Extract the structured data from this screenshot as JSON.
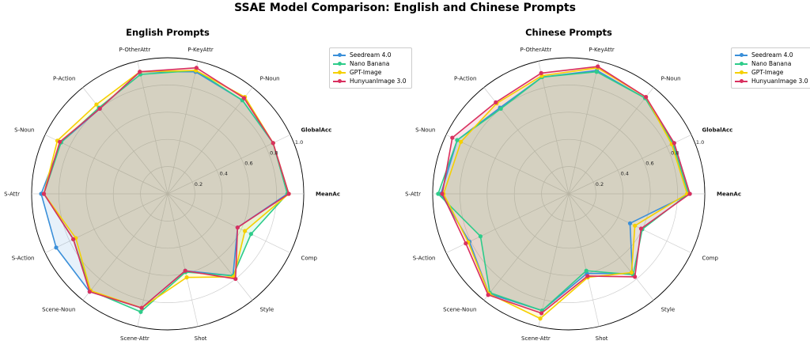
{
  "figure": {
    "title": "SSAE Model Comparison: English and Chinese Prompts"
  },
  "chart_data": [
    {
      "type": "radar",
      "title": "English Prompts",
      "axes": [
        "MeanAcc",
        "Comp",
        "Style",
        "Shot",
        "Scene-Attr",
        "Scene-Noun",
        "S-Action",
        "S-Attr",
        "S-Noun",
        "P-Action",
        "P-OtherAttr",
        "P-KeyAttr",
        "P-Noun",
        "GlobalAcc"
      ],
      "bold_axes": [
        "MeanAcc",
        "GlobalAcc"
      ],
      "rlim": [
        0,
        1.0
      ],
      "rticks": [
        0.2,
        0.4,
        0.6,
        0.8,
        1.0
      ],
      "rtick_labels": [
        "0.2",
        "0.4",
        "0.6",
        "0.8",
        "1.0"
      ],
      "grid": true,
      "legend_position": "top-right",
      "series": [
        {
          "name": "Seedream 4.0",
          "color": "#3a8fd9",
          "values": [
            0.88,
            0.57,
            0.77,
            0.58,
            0.86,
            0.92,
            0.91,
            0.93,
            0.87,
            0.8,
            0.92,
            0.92,
            0.88,
            0.86
          ]
        },
        {
          "name": "Nano Banana",
          "color": "#2ecc8a",
          "values": [
            0.88,
            0.68,
            0.77,
            0.59,
            0.89,
            0.91,
            0.77,
            0.91,
            0.87,
            0.81,
            0.9,
            0.93,
            0.88,
            0.86
          ]
        },
        {
          "name": "GPT-Image",
          "color": "#f5d000",
          "values": [
            0.89,
            0.63,
            0.78,
            0.63,
            0.86,
            0.91,
            0.75,
            0.91,
            0.9,
            0.84,
            0.92,
            0.93,
            0.91,
            0.86
          ]
        },
        {
          "name": "HunyuanImage 3.0",
          "color": "#d9305f",
          "values": [
            0.89,
            0.57,
            0.8,
            0.58,
            0.86,
            0.92,
            0.77,
            0.91,
            0.88,
            0.8,
            0.92,
            0.95,
            0.9,
            0.86
          ]
        }
      ]
    },
    {
      "type": "radar",
      "title": "Chinese Prompts",
      "axes": [
        "MeanAcc",
        "Comp",
        "Style",
        "Shot",
        "Scene-Attr",
        "Scene-Noun",
        "S-Action",
        "S-Attr",
        "S-Noun",
        "P-Action",
        "P-OtherAttr",
        "P-KeyAttr",
        "P-Noun",
        "GlobalAcc"
      ],
      "bold_axes": [
        "MeanAcc",
        "GlobalAcc"
      ],
      "rlim": [
        0,
        1.0
      ],
      "rticks": [
        0.2,
        0.4,
        0.6,
        0.8,
        1.0
      ],
      "rtick_labels": [
        "0.2",
        "0.4",
        "0.6",
        "0.8",
        "1.0"
      ],
      "grid": true,
      "legend_position": "top-right",
      "series": [
        {
          "name": "Seedream 4.0",
          "color": "#3a8fd9",
          "values": [
            0.89,
            0.5,
            0.75,
            0.6,
            0.88,
            0.94,
            0.81,
            0.94,
            0.91,
            0.81,
            0.88,
            0.93,
            0.9,
            0.86
          ]
        },
        {
          "name": "Nano Banana",
          "color": "#2ecc8a",
          "values": [
            0.88,
            0.6,
            0.76,
            0.58,
            0.88,
            0.93,
            0.72,
            0.96,
            0.91,
            0.8,
            0.88,
            0.92,
            0.9,
            0.85
          ]
        },
        {
          "name": "GPT-Image",
          "color": "#f5d000",
          "values": [
            0.87,
            0.54,
            0.74,
            0.63,
            0.94,
            0.94,
            0.82,
            0.92,
            0.88,
            0.85,
            0.89,
            0.95,
            0.91,
            0.84
          ]
        },
        {
          "name": "HunyuanImage 3.0",
          "color": "#d9305f",
          "values": [
            0.89,
            0.59,
            0.78,
            0.62,
            0.9,
            0.95,
            0.84,
            0.93,
            0.95,
            0.86,
            0.91,
            0.96,
            0.91,
            0.86
          ]
        }
      ]
    }
  ]
}
